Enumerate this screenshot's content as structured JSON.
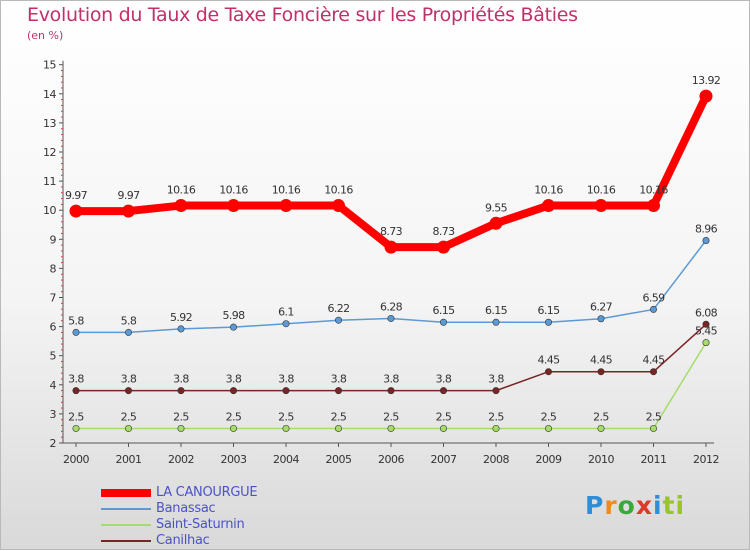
{
  "title": "Evolution du Taux de Taxe Foncière sur les Propriétés Bâties",
  "unit_label": "(en %)",
  "logo": {
    "text": "Proxiti",
    "letters": [
      "P",
      "r",
      "o",
      "x",
      "i",
      "t",
      "i"
    ]
  },
  "chart_data": {
    "type": "line",
    "title": "Evolution du Taux de Taxe Foncière sur les Propriétés Bâties",
    "ylabel": "(en %)",
    "xlabel": "",
    "ylim": [
      2,
      15
    ],
    "yticks": [
      2,
      3,
      4,
      5,
      6,
      7,
      8,
      9,
      10,
      11,
      12,
      13,
      14,
      15
    ],
    "grid": false,
    "legend_position": "bottom-left",
    "categories": [
      "2000",
      "2001",
      "2002",
      "2003",
      "2004",
      "2005",
      "2006",
      "2007",
      "2008",
      "2009",
      "2010",
      "2011",
      "2012"
    ],
    "series": [
      {
        "name": "LA CANOURGUE",
        "color": "#ff0000",
        "width": 8,
        "values": [
          9.97,
          9.97,
          10.16,
          10.16,
          10.16,
          10.16,
          8.73,
          8.73,
          9.55,
          10.16,
          10.16,
          10.16,
          13.92
        ],
        "labels": [
          "9.97",
          "9.97",
          "10.16",
          "10.16",
          "10.16",
          "10.16",
          "8.73",
          "8.73",
          "9.55",
          "10.16",
          "10.16",
          "10.16",
          "13.92"
        ]
      },
      {
        "name": "Banassac",
        "color": "#5b9ad4",
        "width": 1.5,
        "values": [
          5.8,
          5.8,
          5.92,
          5.98,
          6.1,
          6.22,
          6.28,
          6.15,
          6.15,
          6.15,
          6.27,
          6.59,
          8.96
        ],
        "labels": [
          "5.8",
          "5.8",
          "5.92",
          "5.98",
          "6.1",
          "6.22",
          "6.28",
          "6.15",
          "6.15",
          "6.15",
          "6.27",
          "6.59",
          "8.96"
        ]
      },
      {
        "name": "Saint-Saturnin",
        "color": "#a6dc6a",
        "width": 1.5,
        "values": [
          2.5,
          2.5,
          2.5,
          2.5,
          2.5,
          2.5,
          2.5,
          2.5,
          2.5,
          2.5,
          2.5,
          2.5,
          5.45
        ],
        "labels": [
          "2.5",
          "2.5",
          "2.5",
          "2.5",
          "2.5",
          "2.5",
          "2.5",
          "2.5",
          "2.5",
          "2.5",
          "2.5",
          "2.5",
          "5.45"
        ]
      },
      {
        "name": "Canilhac",
        "color": "#7a2424",
        "width": 1.5,
        "values": [
          3.8,
          3.8,
          3.8,
          3.8,
          3.8,
          3.8,
          3.8,
          3.8,
          3.8,
          4.45,
          4.45,
          4.45,
          6.08
        ],
        "labels": [
          "3.8",
          "3.8",
          "3.8",
          "3.8",
          "3.8",
          "3.8",
          "3.8",
          "3.8",
          "3.8",
          "4.45",
          "4.45",
          "4.45",
          "6.08"
        ]
      }
    ]
  }
}
